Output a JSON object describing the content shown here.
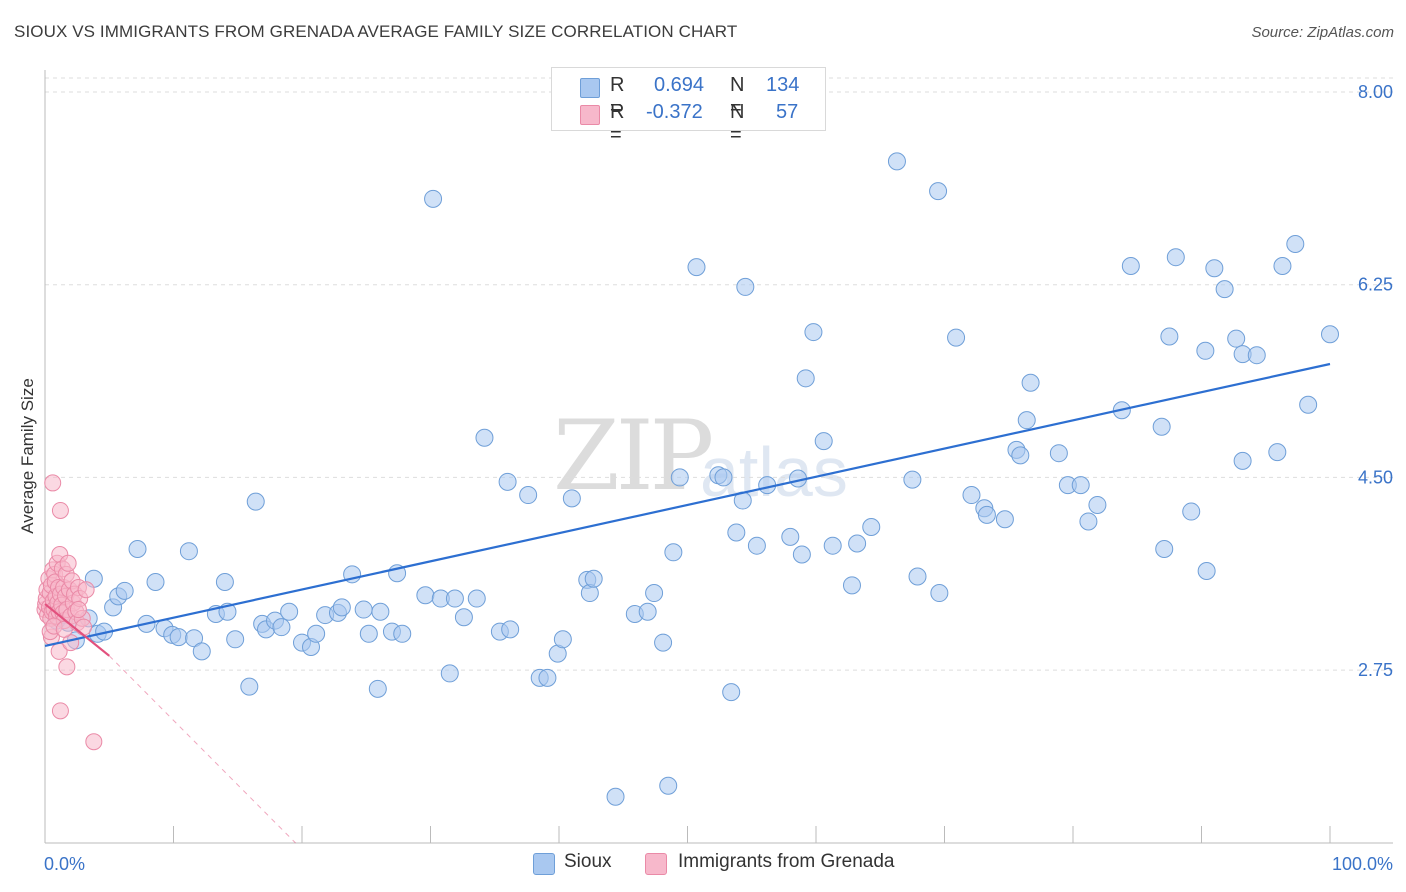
{
  "title": "SIOUX VS IMMIGRANTS FROM GRENADA AVERAGE FAMILY SIZE CORRELATION CHART",
  "source": "Source: ZipAtlas.com",
  "watermark": {
    "main": "ZIP",
    "sub": "atlas"
  },
  "legend": {
    "rows": [
      {
        "r_label": "R =",
        "r_value": "0.694",
        "n_label": "N =",
        "n_value": "134"
      },
      {
        "r_label": "R =",
        "r_value": "-0.372",
        "n_label": "N =",
        "n_value": "57"
      }
    ]
  },
  "bottom_legend": {
    "sioux": "Sioux",
    "grenada": "Immigrants from Grenada"
  },
  "colors": {
    "sioux_fill": "#a9c8f0",
    "sioux_stroke": "#6f9fd8",
    "sioux_line": "#2d6fd1",
    "grenada_fill": "#f7b8cb",
    "grenada_stroke": "#ea8aa7",
    "grenada_line": "#e2507d",
    "tick_text": "#3a73c8",
    "grid": "#dddddd"
  },
  "chart_data": {
    "type": "scatter",
    "title": "SIOUX VS IMMIGRANTS FROM GRENADA AVERAGE FAMILY SIZE CORRELATION CHART",
    "xlabel": "",
    "ylabel": "Average Family Size",
    "xlim": [
      0,
      100
    ],
    "ylim": [
      1.18,
      8.2
    ],
    "x_tick_labels": [
      "0.0%",
      "100.0%"
    ],
    "y_ticks": [
      2.75,
      4.5,
      6.25,
      8.0
    ],
    "y_tick_labels": [
      "2.75",
      "4.50",
      "6.25",
      "8.00"
    ],
    "grid": "horizontal dashed",
    "legend_position": "top-center",
    "series": [
      {
        "name": "Sioux",
        "trend": {
          "x": [
            0,
            100
          ],
          "y": [
            2.97,
            5.53
          ]
        },
        "points": [
          [
            0.9,
            3.2
          ],
          [
            1.4,
            3.25
          ],
          [
            1.8,
            3.18
          ],
          [
            2.4,
            3.02
          ],
          [
            3.4,
            3.22
          ],
          [
            3.8,
            3.58
          ],
          [
            4.1,
            3.08
          ],
          [
            4.6,
            3.1
          ],
          [
            5.3,
            3.32
          ],
          [
            5.7,
            3.42
          ],
          [
            6.2,
            3.47
          ],
          [
            7.2,
            3.85
          ],
          [
            7.9,
            3.17
          ],
          [
            8.6,
            3.55
          ],
          [
            9.3,
            3.13
          ],
          [
            9.9,
            3.07
          ],
          [
            10.4,
            3.05
          ],
          [
            11.2,
            3.83
          ],
          [
            11.6,
            3.04
          ],
          [
            12.2,
            2.92
          ],
          [
            13.3,
            3.26
          ],
          [
            14.0,
            3.55
          ],
          [
            14.2,
            3.28
          ],
          [
            14.8,
            3.03
          ],
          [
            15.9,
            2.6
          ],
          [
            16.4,
            4.28
          ],
          [
            16.9,
            3.17
          ],
          [
            17.2,
            3.12
          ],
          [
            17.9,
            3.2
          ],
          [
            18.4,
            3.14
          ],
          [
            19.0,
            3.28
          ],
          [
            20.0,
            3.0
          ],
          [
            20.7,
            2.96
          ],
          [
            21.1,
            3.08
          ],
          [
            21.8,
            3.25
          ],
          [
            22.8,
            3.27
          ],
          [
            23.1,
            3.32
          ],
          [
            23.9,
            3.62
          ],
          [
            24.8,
            3.3
          ],
          [
            25.2,
            3.08
          ],
          [
            25.9,
            2.58
          ],
          [
            26.1,
            3.28
          ],
          [
            27.0,
            3.1
          ],
          [
            27.4,
            3.63
          ],
          [
            27.8,
            3.08
          ],
          [
            29.6,
            3.43
          ],
          [
            30.2,
            7.03
          ],
          [
            30.8,
            3.4
          ],
          [
            31.5,
            2.72
          ],
          [
            31.9,
            3.4
          ],
          [
            32.6,
            3.23
          ],
          [
            33.6,
            3.4
          ],
          [
            34.2,
            4.86
          ],
          [
            35.4,
            3.1
          ],
          [
            36.0,
            4.46
          ],
          [
            36.2,
            3.12
          ],
          [
            37.6,
            4.34
          ],
          [
            38.5,
            2.68
          ],
          [
            39.1,
            2.68
          ],
          [
            39.9,
            2.9
          ],
          [
            40.3,
            3.03
          ],
          [
            41.0,
            4.31
          ],
          [
            42.2,
            3.57
          ],
          [
            42.4,
            3.45
          ],
          [
            42.7,
            3.58
          ],
          [
            44.4,
            1.6
          ],
          [
            45.9,
            3.26
          ],
          [
            46.9,
            3.28
          ],
          [
            47.4,
            3.45
          ],
          [
            48.1,
            3.0
          ],
          [
            48.5,
            1.7
          ],
          [
            48.9,
            3.82
          ],
          [
            49.4,
            4.5
          ],
          [
            50.7,
            6.41
          ],
          [
            52.4,
            4.52
          ],
          [
            52.8,
            4.5
          ],
          [
            53.4,
            2.55
          ],
          [
            53.8,
            4.0
          ],
          [
            54.3,
            4.29
          ],
          [
            54.5,
            6.23
          ],
          [
            55.4,
            3.88
          ],
          [
            56.2,
            4.43
          ],
          [
            58.0,
            3.96
          ],
          [
            58.6,
            4.49
          ],
          [
            58.9,
            3.8
          ],
          [
            59.2,
            5.4
          ],
          [
            59.8,
            5.82
          ],
          [
            60.6,
            4.83
          ],
          [
            61.3,
            3.88
          ],
          [
            62.8,
            3.52
          ],
          [
            63.2,
            3.9
          ],
          [
            64.3,
            4.05
          ],
          [
            66.3,
            7.37
          ],
          [
            67.5,
            4.48
          ],
          [
            67.9,
            3.6
          ],
          [
            69.5,
            7.1
          ],
          [
            69.6,
            3.45
          ],
          [
            70.9,
            5.77
          ],
          [
            72.1,
            4.34
          ],
          [
            73.1,
            4.22
          ],
          [
            73.3,
            4.16
          ],
          [
            74.7,
            4.12
          ],
          [
            75.6,
            4.75
          ],
          [
            75.9,
            4.7
          ],
          [
            76.4,
            5.02
          ],
          [
            76.7,
            5.36
          ],
          [
            78.9,
            4.72
          ],
          [
            79.6,
            4.43
          ],
          [
            80.6,
            4.43
          ],
          [
            81.2,
            4.1
          ],
          [
            81.9,
            4.25
          ],
          [
            83.8,
            5.11
          ],
          [
            84.5,
            6.42
          ],
          [
            86.9,
            4.96
          ],
          [
            87.1,
            3.85
          ],
          [
            87.5,
            5.78
          ],
          [
            88.0,
            6.5
          ],
          [
            89.2,
            4.19
          ],
          [
            90.3,
            5.65
          ],
          [
            90.4,
            3.65
          ],
          [
            91.0,
            6.4
          ],
          [
            91.8,
            6.21
          ],
          [
            92.7,
            5.76
          ],
          [
            93.2,
            5.62
          ],
          [
            93.2,
            4.65
          ],
          [
            94.3,
            5.61
          ],
          [
            95.9,
            4.73
          ],
          [
            96.3,
            6.42
          ],
          [
            97.3,
            6.62
          ],
          [
            98.3,
            5.16
          ],
          [
            100.0,
            5.8
          ]
        ]
      },
      {
        "name": "Immigrants from Grenada",
        "trend": {
          "x": [
            0,
            5.0
          ],
          "y": [
            3.35,
            2.88
          ],
          "dashed_extension_to": [
            19.5,
            1.18
          ]
        },
        "points": [
          [
            0.0,
            3.3
          ],
          [
            0.05,
            3.35
          ],
          [
            0.1,
            3.4
          ],
          [
            0.15,
            3.48
          ],
          [
            0.2,
            3.25
          ],
          [
            0.3,
            3.58
          ],
          [
            0.35,
            3.32
          ],
          [
            0.4,
            3.45
          ],
          [
            0.45,
            3.22
          ],
          [
            0.5,
            3.52
          ],
          [
            0.55,
            3.28
          ],
          [
            0.6,
            3.66
          ],
          [
            0.65,
            3.38
          ],
          [
            0.7,
            3.3
          ],
          [
            0.75,
            3.62
          ],
          [
            0.8,
            3.55
          ],
          [
            0.85,
            3.42
          ],
          [
            0.9,
            3.24
          ],
          [
            0.95,
            3.72
          ],
          [
            1.0,
            3.36
          ],
          [
            1.05,
            3.5
          ],
          [
            1.1,
            3.28
          ],
          [
            1.15,
            3.8
          ],
          [
            1.2,
            3.44
          ],
          [
            1.3,
            3.34
          ],
          [
            1.35,
            3.67
          ],
          [
            1.4,
            3.27
          ],
          [
            1.45,
            3.5
          ],
          [
            1.5,
            3.2
          ],
          [
            1.6,
            3.42
          ],
          [
            1.65,
            3.62
          ],
          [
            1.7,
            3.3
          ],
          [
            1.8,
            3.72
          ],
          [
            1.9,
            3.48
          ],
          [
            2.0,
            3.24
          ],
          [
            2.1,
            3.56
          ],
          [
            2.2,
            3.36
          ],
          [
            2.3,
            3.44
          ],
          [
            2.4,
            3.28
          ],
          [
            2.5,
            3.18
          ],
          [
            2.6,
            3.5
          ],
          [
            2.7,
            3.4
          ],
          [
            2.9,
            3.22
          ],
          [
            3.0,
            3.14
          ],
          [
            3.2,
            3.48
          ],
          [
            0.6,
            4.45
          ],
          [
            1.2,
            4.2
          ],
          [
            1.2,
            2.38
          ],
          [
            1.7,
            2.78
          ],
          [
            3.8,
            2.1
          ],
          [
            0.5,
            3.05
          ],
          [
            1.1,
            2.92
          ],
          [
            2.0,
            3.0
          ],
          [
            0.4,
            3.1
          ],
          [
            2.6,
            3.3
          ],
          [
            0.7,
            3.15
          ],
          [
            1.5,
            3.12
          ]
        ]
      }
    ]
  }
}
